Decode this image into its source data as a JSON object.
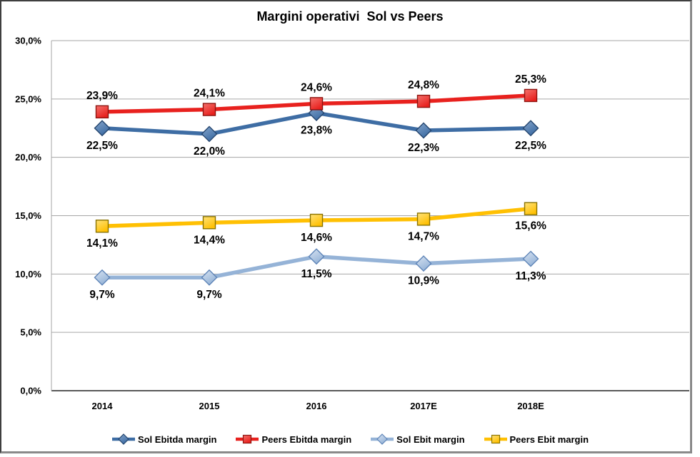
{
  "chart_data": {
    "type": "line",
    "title": "Margini operativi  Sol vs Peers",
    "categories": [
      "2014",
      "2015",
      "2016",
      "2017E",
      "2018E"
    ],
    "y_axis": {
      "min": 0,
      "max": 30,
      "step": 5,
      "tick_labels": [
        "0,0%",
        "5,0%",
        "10,0%",
        "15,0%",
        "20,0%",
        "25,0%",
        "30,0%"
      ]
    },
    "grid": true,
    "legend_position": "bottom",
    "colors": {
      "gridline": "#A6A6A6",
      "axis_line": "#595959",
      "plot_border": "#8C8C8C",
      "text": "#000000"
    },
    "series": [
      {
        "name": "Sol Ebitda margin",
        "marker": "diamond",
        "color": "#3E6DA4",
        "marker_light": "#86A5CB",
        "marker_border": "#24456E",
        "values": [
          22.5,
          22.0,
          23.8,
          22.3,
          22.5
        ],
        "labels": [
          "22,5%",
          "22,0%",
          "23,8%",
          "22,3%",
          "22,5%"
        ],
        "label_position": "below"
      },
      {
        "name": "Peers Ebitda margin",
        "marker": "square",
        "color": "#E8211E",
        "marker_light": "#F4716C",
        "marker_border": "#8E1410",
        "values": [
          23.9,
          24.1,
          24.6,
          24.8,
          25.3
        ],
        "labels": [
          "23,9%",
          "24,1%",
          "24,6%",
          "24,8%",
          "25,3%"
        ],
        "label_position": "above"
      },
      {
        "name": "Sol Ebit margin",
        "marker": "diamond",
        "color": "#95B3D7",
        "marker_light": "#D9E4F2",
        "marker_border": "#5F85B8",
        "values": [
          9.7,
          9.7,
          11.5,
          10.9,
          11.3
        ],
        "labels": [
          "9,7%",
          "9,7%",
          "11,5%",
          "10,9%",
          "11,3%"
        ],
        "label_position": "below"
      },
      {
        "name": "Peers Ebit margin",
        "marker": "square",
        "color": "#FFC003",
        "marker_light": "#FFE27A",
        "marker_border": "#8A7300",
        "values": [
          14.1,
          14.4,
          14.6,
          14.7,
          15.6
        ],
        "labels": [
          "14,1%",
          "14,4%",
          "14,6%",
          "14,7%",
          "15,6%"
        ],
        "label_position": "below"
      }
    ]
  }
}
